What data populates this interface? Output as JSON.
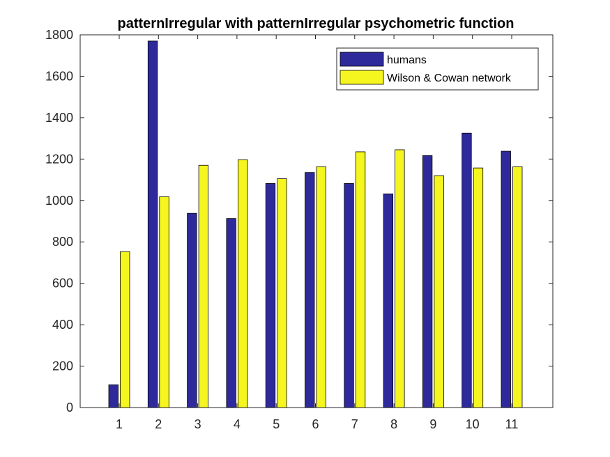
{
  "chart_data": {
    "type": "bar",
    "title": "patternIrregular with patternIrregular psychometric function",
    "xlabel": "",
    "ylabel": "",
    "categories": [
      "1",
      "2",
      "3",
      "4",
      "5",
      "6",
      "7",
      "8",
      "9",
      "10",
      "11"
    ],
    "series": [
      {
        "name": "humans",
        "color": "#2e2a9c",
        "values": [
          110,
          1770,
          938,
          913,
          1082,
          1135,
          1082,
          1032,
          1217,
          1325,
          1238
        ]
      },
      {
        "name": "Wilson & Cowan network",
        "color": "#f5f520",
        "values": [
          753,
          1018,
          1170,
          1197,
          1105,
          1163,
          1235,
          1245,
          1120,
          1157,
          1163
        ]
      }
    ],
    "ylim": [
      0,
      1800
    ],
    "yticks": [
      "0",
      "200",
      "400",
      "600",
      "800",
      "1000",
      "1200",
      "1400",
      "1600",
      "1800"
    ],
    "grid": false,
    "legend_position": "top-right"
  }
}
